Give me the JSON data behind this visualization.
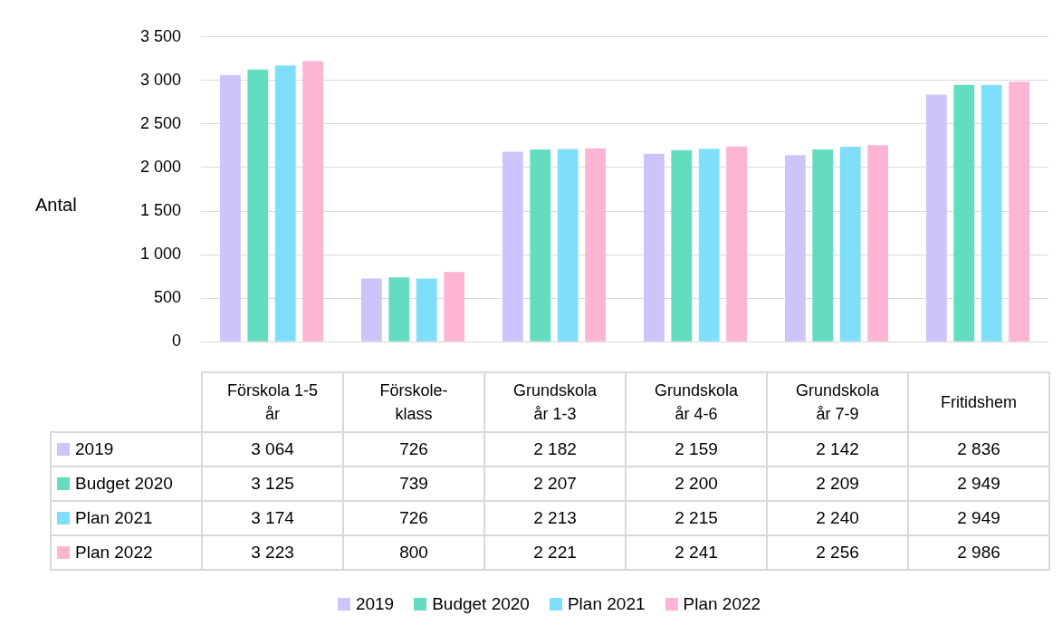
{
  "chart_data": {
    "type": "bar",
    "ylabel": "Antal",
    "categories": [
      "Förskola 1-5 år",
      "Förskole-klass",
      "Grundskola år 1-3",
      "Grundskola år 4-6",
      "Grundskola år  7-9",
      "Fritidshem"
    ],
    "series": [
      {
        "name": "2019",
        "color": "#cfc3fb",
        "values": [
          3064,
          726,
          2182,
          2159,
          2142,
          2836
        ],
        "value_labels": [
          "3 064",
          "726",
          "2 182",
          "2 159",
          "2 142",
          "2 836"
        ]
      },
      {
        "name": "Budget 2020",
        "color": "#63dcbf",
        "values": [
          3125,
          739,
          2207,
          2200,
          2209,
          2949
        ],
        "value_labels": [
          "3 125",
          "739",
          "2 207",
          "2 200",
          "2 209",
          "2 949"
        ]
      },
      {
        "name": "Plan 2021",
        "color": "#7fdffb",
        "values": [
          3174,
          726,
          2213,
          2215,
          2240,
          2949
        ],
        "value_labels": [
          "3 174",
          "726",
          "2 213",
          "2 215",
          "2 240",
          "2 949"
        ]
      },
      {
        "name": "Plan 2022",
        "color": "#fdb5d3",
        "values": [
          3223,
          800,
          2221,
          2241,
          2256,
          2986
        ],
        "value_labels": [
          "3 223",
          "800",
          "2 221",
          "2 241",
          "2 256",
          "2 986"
        ]
      }
    ],
    "ylim": [
      0,
      3500
    ],
    "yticks": [
      0,
      500,
      {
        "value": 1000,
        "label": "1 000"
      },
      {
        "value": 1500,
        "label": "1 500"
      },
      {
        "value": 2000,
        "label": "2 000"
      },
      {
        "value": 2500,
        "label": "2 500"
      },
      {
        "value": 3000,
        "label": "3 000"
      },
      {
        "value": 3500,
        "label": "3 500"
      }
    ],
    "grid": "y",
    "legend": "bottom"
  }
}
